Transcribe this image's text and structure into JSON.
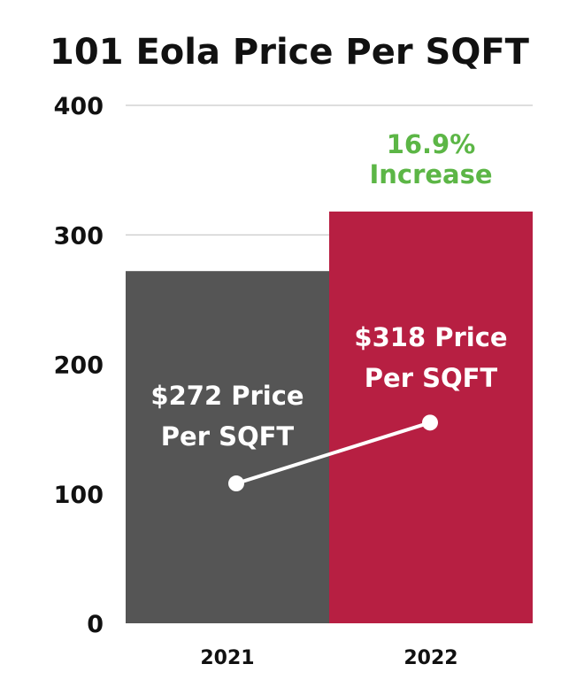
{
  "chart_data": {
    "type": "bar",
    "title": "101 Eola Price Per SQFT",
    "xlabel": "",
    "ylabel": "",
    "categories": [
      "2021",
      "2022"
    ],
    "values": [
      272,
      318
    ],
    "ylim": [
      0,
      400
    ],
    "yticks": [
      "0",
      "100",
      "200",
      "300",
      "400"
    ],
    "grid": true,
    "bar_colors": [
      "#555555",
      "#b71f42"
    ],
    "bar_labels": [
      [
        "$272 Price",
        "Per SQFT"
      ],
      [
        "$318 Price",
        "Per SQFT"
      ]
    ],
    "annotation": {
      "lines": [
        "16.9%",
        "Increase"
      ],
      "color": "#5cb646"
    },
    "trend_line": {
      "color": "#ffffff",
      "values": [
        108,
        155
      ]
    }
  }
}
